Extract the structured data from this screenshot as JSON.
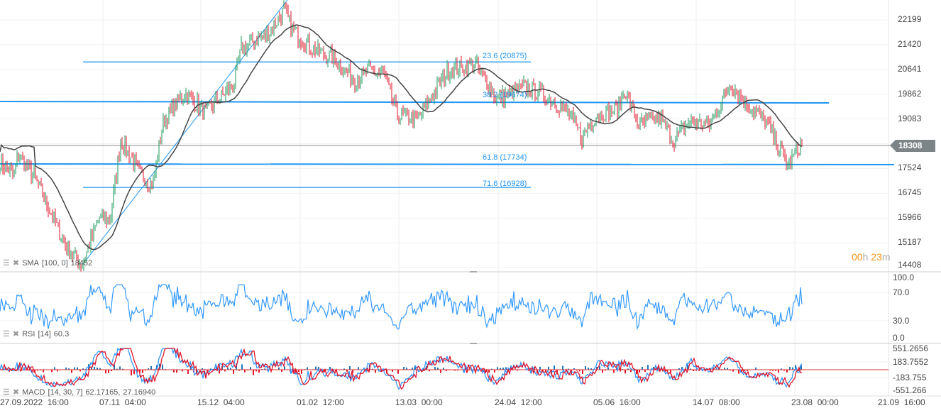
{
  "price_axis": [
    "22199",
    "21420",
    "20641",
    "19862",
    "19083",
    "18308",
    "17524",
    "16745",
    "15966",
    "15187",
    "14408"
  ],
  "current_price": "18308",
  "rsi_axis": [
    "100.0",
    "70.0",
    "30.0",
    "0.0"
  ],
  "macd_axis": [
    "551.2656",
    "183.7552",
    "-183.755",
    "-551.266"
  ],
  "time_axis": [
    "27.09.2022  16:00",
    "07.11  04:00",
    "15.12  04:00",
    "01.02  12:00",
    "13.03  00:00",
    "24.04  12:00",
    "05.06  16:00",
    "14.07  08:00",
    "23.08  00:00",
    "21.09  16:00"
  ],
  "fib_levels": [
    {
      "label": "23.6 (20875)",
      "price": 20875
    },
    {
      "label": "38.2 (19674)",
      "price": 19674
    },
    {
      "label": "61.8 (17734)",
      "price": 17734
    },
    {
      "label": "71.6 (16928)",
      "price": 16928
    }
  ],
  "indicators": {
    "sma": {
      "name": "SMA",
      "params": "[100,  0]",
      "value": "18452"
    },
    "rsi": {
      "name": "RSI",
      "params": "[14]",
      "value": "60.3"
    },
    "macd": {
      "name": "MACD",
      "params": "[14,  30,  7]",
      "value1": "62.17165,",
      "value2": "27.16940"
    }
  },
  "countdown": {
    "hours": "00",
    "h": "h",
    "minutes": "23",
    "m": "m"
  },
  "colors": {
    "up": "#1a9a5a",
    "down": "#e0162b",
    "accent": "#2196f3",
    "sma": "#444444",
    "macd_hist": "#1b75bb"
  },
  "chart_data": {
    "type": "line",
    "price_range": [
      14408,
      22199
    ],
    "price_path": [
      17700,
      17300,
      18000,
      17200,
      15200,
      14450,
      16000,
      15900,
      18400,
      17300,
      17000,
      19000,
      19900,
      19300,
      20200,
      21300,
      21800,
      22500,
      22000,
      21700,
      21300,
      21000,
      20300,
      20600,
      20500,
      19200,
      19100,
      20600,
      20800,
      19700,
      20100,
      19800,
      19300,
      18500,
      19200,
      19400,
      20000,
      18900,
      19100,
      18400,
      19000,
      18900,
      20200,
      19600,
      19000,
      17600,
      18308
    ]
  }
}
